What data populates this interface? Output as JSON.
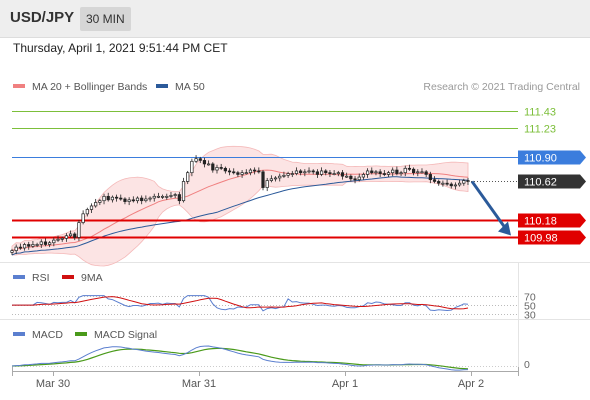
{
  "header": {
    "symbol": "USD/JPY",
    "timeframe": "30 MIN",
    "datetime": "Thursday, April 1, 2021 9:51:44 PM CET"
  },
  "watermark": "Research © 2021 Trading Central",
  "colors": {
    "ma20": "#f08080",
    "ma50": "#2b5a9a",
    "resistance": "#7cbf3a",
    "support": "#e00000",
    "pivot": "#3b7ddd",
    "price_box": "#333333",
    "rsi": "#5b7fcf",
    "rsi_ma": "#d01010",
    "macd": "#5b7fcf",
    "macd_signal": "#4a9a1a",
    "arrow": "#2b5a9a"
  },
  "chart_data": [
    {
      "type": "candlestick",
      "panel": "price",
      "x_labels": [
        "Mar 30",
        "Mar 31",
        "Apr 1",
        "Apr 2"
      ],
      "ylim": [
        109.7,
        111.55
      ],
      "legend": [
        {
          "name": "MA 20 + Bollinger Bands",
          "color": "#f08080"
        },
        {
          "name": "MA 50",
          "color": "#2b5a9a"
        }
      ],
      "levels": [
        {
          "value": 111.43,
          "label": "111.43",
          "kind": "resistance"
        },
        {
          "value": 111.23,
          "label": "111.23",
          "kind": "resistance"
        },
        {
          "value": 110.9,
          "label": "110.90",
          "kind": "pivot"
        },
        {
          "value": 110.18,
          "label": "110.18",
          "kind": "support"
        },
        {
          "value": 109.98,
          "label": "109.98",
          "kind": "support"
        }
      ],
      "last_price": {
        "value": 110.62,
        "label": "110.62"
      },
      "closes": [
        109.83,
        109.87,
        109.86,
        109.9,
        109.88,
        109.9,
        109.9,
        109.93,
        109.9,
        109.92,
        109.95,
        109.96,
        109.97,
        110.0,
        110.02,
        109.98,
        110.15,
        110.25,
        110.3,
        110.34,
        110.38,
        110.4,
        110.45,
        110.41,
        110.44,
        110.43,
        110.42,
        110.39,
        110.41,
        110.4,
        110.43,
        110.4,
        110.42,
        110.43,
        110.45,
        110.45,
        110.45,
        110.45,
        110.46,
        110.47,
        110.4,
        110.62,
        110.72,
        110.85,
        110.88,
        110.86,
        110.82,
        110.82,
        110.75,
        110.78,
        110.77,
        110.74,
        110.73,
        110.72,
        110.7,
        110.72,
        110.72,
        110.75,
        110.74,
        110.73,
        110.55,
        110.63,
        110.65,
        110.66,
        110.68,
        110.69,
        110.71,
        110.71,
        110.74,
        110.72,
        110.73,
        110.74,
        110.73,
        110.7,
        110.74,
        110.72,
        110.71,
        110.71,
        110.72,
        110.68,
        110.68,
        110.65,
        110.64,
        110.67,
        110.7,
        110.74,
        110.72,
        110.73,
        110.71,
        110.7,
        110.72,
        110.75,
        110.71,
        110.72,
        110.77,
        110.76,
        110.72,
        110.73,
        110.73,
        110.7,
        110.64,
        110.62,
        110.6,
        110.6,
        110.59,
        110.57,
        110.58,
        110.6,
        110.63,
        110.62
      ],
      "projection": {
        "from": 110.62,
        "to": 109.98
      }
    },
    {
      "type": "line",
      "panel": "rsi",
      "legend": [
        {
          "name": "RSI",
          "color": "#5b7fcf"
        },
        {
          "name": "9MA",
          "color": "#d01010"
        }
      ],
      "levels": [
        70,
        50,
        30
      ],
      "level_labels": [
        "70",
        "50",
        "30"
      ],
      "ylim": [
        20,
        85
      ]
    },
    {
      "type": "line",
      "panel": "macd",
      "legend": [
        {
          "name": "MACD",
          "color": "#5b7fcf"
        },
        {
          "name": "MACD Signal",
          "color": "#4a9a1a"
        }
      ],
      "zero_label": "0"
    }
  ]
}
